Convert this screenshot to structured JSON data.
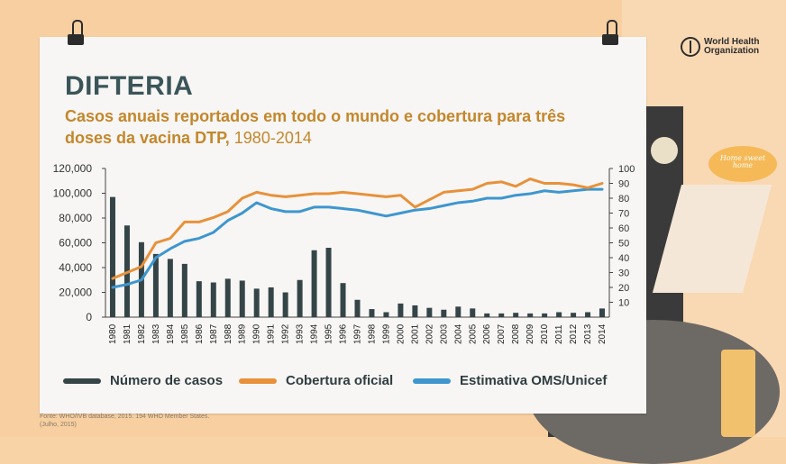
{
  "header": {
    "title": "DIFTERIA",
    "subtitle": "Casos anuais reportados em todo o mundo e cobertura para três doses da vacina DTP,",
    "subtitle_years": "1980-2014"
  },
  "logo": {
    "name_line1": "World Health",
    "name_line2": "Organization"
  },
  "decor": {
    "sign_text": "Home sweet home"
  },
  "source": {
    "line1": "Fonte: WHO/IVB database, 2015. 194 WHO Member States.",
    "line2": "(Julho, 2015)"
  },
  "colors": {
    "bars": "#354547",
    "official": "#e8913a",
    "who_unicef": "#3e96cf"
  },
  "chart_data": {
    "type": "bar",
    "categories": [
      "1980",
      "1981",
      "1982",
      "1983",
      "1984",
      "1985",
      "1986",
      "1987",
      "1988",
      "1989",
      "1990",
      "1991",
      "1992",
      "1993",
      "1994",
      "1995",
      "1996",
      "1997",
      "1998",
      "1999",
      "2000",
      "2001",
      "2002",
      "2003",
      "2004",
      "2005",
      "2006",
      "2007",
      "2008",
      "2009",
      "2010",
      "2011",
      "2012",
      "2013",
      "2014"
    ],
    "y_left": {
      "range": [
        0,
        120000
      ],
      "ticks": [
        "0",
        "20,000",
        "40,000",
        "60,000",
        "80,000",
        "100,000",
        "120,000"
      ]
    },
    "y_right": {
      "range": [
        0,
        100
      ],
      "ticks": [
        "10",
        "20",
        "30",
        "40",
        "50",
        "60",
        "70",
        "80",
        "90",
        "100"
      ]
    },
    "series": [
      {
        "name": "Número de casos",
        "type": "bar",
        "axis": "left",
        "values": [
          97000,
          74000,
          60500,
          51000,
          47000,
          43000,
          29000,
          28000,
          31000,
          29500,
          23000,
          24000,
          20000,
          30000,
          54000,
          56000,
          27500,
          14000,
          6500,
          4000,
          11000,
          9500,
          7500,
          6000,
          8500,
          7000,
          3000,
          3000,
          3500,
          3000,
          3000,
          4000,
          3500,
          4000,
          7000
        ]
      },
      {
        "name": "Cobertura oficial",
        "type": "line",
        "axis": "right",
        "values": [
          26,
          30,
          34,
          50,
          53,
          64,
          64,
          67,
          71,
          80,
          84,
          82,
          81,
          82,
          83,
          83,
          84,
          83,
          82,
          81,
          82,
          74,
          79,
          84,
          85,
          86,
          90,
          91,
          88,
          93,
          90,
          90,
          89,
          87,
          90
        ]
      },
      {
        "name": "Estimativa OMS/Unicef",
        "type": "line",
        "axis": "right",
        "values": [
          20,
          22,
          25,
          40,
          46,
          51,
          53,
          57,
          65,
          70,
          77,
          73,
          71,
          71,
          74,
          74,
          73,
          72,
          70,
          68,
          70,
          72,
          73,
          75,
          77,
          78,
          80,
          80,
          82,
          83,
          85,
          84,
          85,
          86,
          86
        ]
      }
    ],
    "grid": false
  }
}
